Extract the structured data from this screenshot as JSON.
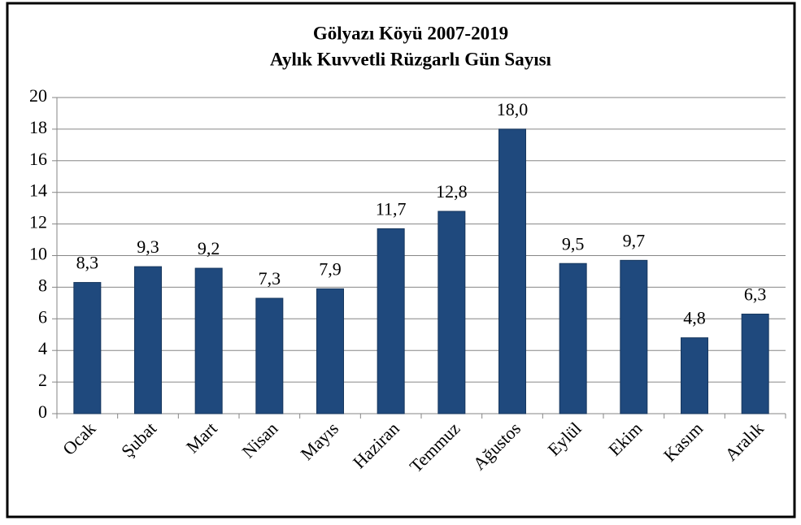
{
  "chart_data": {
    "type": "bar",
    "title": [
      "Gölyazı Köyü 2007-2019",
      "Aylık Kuvvetli Rüzgarlı Gün Sayısı"
    ],
    "categories": [
      "Ocak",
      "Şubat",
      "Mart",
      "Nisan",
      "Mayıs",
      "Haziran",
      "Temmuz",
      "Ağustos",
      "Eylül",
      "Ekim",
      "Kasım",
      "Aralık"
    ],
    "values": [
      8.3,
      9.3,
      9.2,
      7.3,
      7.9,
      11.7,
      12.8,
      18.0,
      9.5,
      9.7,
      4.8,
      6.3
    ],
    "value_labels": [
      "8,3",
      "9,3",
      "9,2",
      "7,3",
      "7,9",
      "11,7",
      "12,8",
      "18,0",
      "9,5",
      "9,7",
      "4,8",
      "6,3"
    ],
    "color": "#1f497d",
    "ylim": [
      0,
      20
    ],
    "yticks": [
      0,
      2,
      4,
      6,
      8,
      10,
      12,
      14,
      16,
      18,
      20
    ],
    "grid": true
  }
}
